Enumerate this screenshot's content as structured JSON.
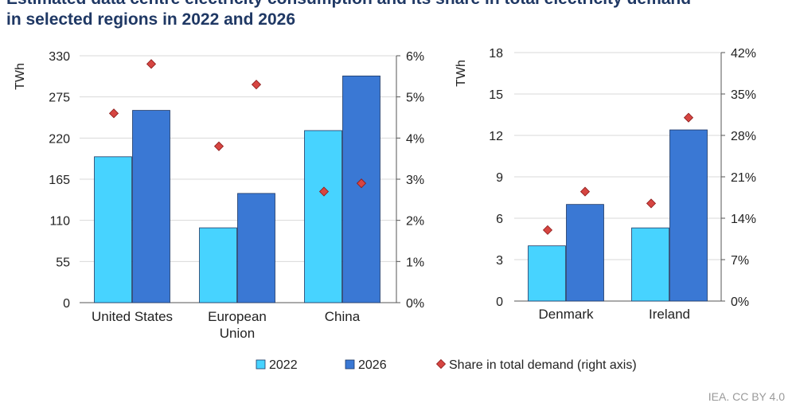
{
  "title_lines": [
    "Estimated data centre electricity consumption and its share in total electricity demand",
    "in selected regions in 2022 and 2026"
  ],
  "colors": {
    "y2022": "#47d3ff",
    "y2026": "#3a78d4",
    "share": "#d64541",
    "title": "#1f3864"
  },
  "legend": {
    "items": [
      {
        "label": "2022",
        "marker": "square",
        "color": "#47d3ff"
      },
      {
        "label": "2026",
        "marker": "square",
        "color": "#3a78d4"
      },
      {
        "label": "Share in total demand (right axis)",
        "marker": "diamond",
        "color": "#d64541"
      }
    ]
  },
  "footer": {
    "credit": "IEA. CC BY 4.0"
  },
  "chart_data": [
    {
      "type": "bar",
      "categories": [
        [
          "United States"
        ],
        [
          "European",
          "Union"
        ],
        [
          "China"
        ]
      ],
      "series": [
        {
          "name": "2022",
          "values": [
            195,
            100,
            230
          ]
        },
        {
          "name": "2026",
          "values": [
            257,
            146,
            303
          ]
        }
      ],
      "secondary_series": {
        "name": "Share in total demand (right axis)",
        "type": "scatter",
        "axis": "right",
        "values": [
          4.6,
          3.8,
          2.7
        ]
      },
      "secondary_series_2026": {
        "values": [
          5.8,
          5.3,
          2.9
        ]
      },
      "ylabel": "TWh",
      "ylim": [
        0,
        330
      ],
      "yticks": [
        0,
        55,
        110,
        165,
        220,
        275,
        330
      ],
      "y2lim": [
        0,
        6
      ],
      "y2ticks": [
        "0%",
        "1%",
        "2%",
        "3%",
        "4%",
        "5%",
        "6%"
      ],
      "grid": true
    },
    {
      "type": "bar",
      "categories": [
        [
          "Denmark"
        ],
        [
          "Ireland"
        ]
      ],
      "series": [
        {
          "name": "2022",
          "values": [
            4.0,
            5.3
          ]
        },
        {
          "name": "2026",
          "values": [
            7.0,
            12.4
          ]
        }
      ],
      "secondary_series": {
        "name": "Share in total demand (right axis)",
        "type": "scatter",
        "axis": "right",
        "values": [
          12,
          16.5
        ]
      },
      "secondary_series_2026": {
        "values": [
          18.5,
          31
        ]
      },
      "ylabel": "TWh",
      "ylim": [
        0,
        18
      ],
      "yticks": [
        0,
        3,
        6,
        9,
        12,
        15,
        18
      ],
      "y2lim": [
        0,
        42
      ],
      "y2ticks": [
        "0%",
        "7%",
        "14%",
        "21%",
        "28%",
        "35%",
        "42%"
      ],
      "grid": true
    }
  ]
}
